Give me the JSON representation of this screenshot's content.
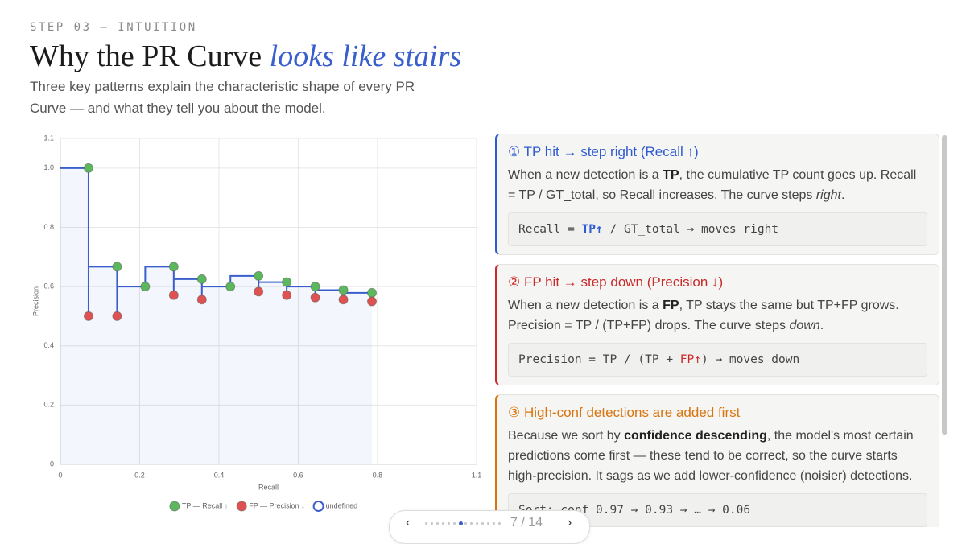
{
  "header": {
    "kicker": "STEP 03 — INTUITION",
    "title": "Why the PR Curve ",
    "title_accent": "looks like stairs",
    "subtitle": "Three key patterns explain the characteristic shape of every PR Curve — and what they tell you about the model."
  },
  "chart_data": {
    "type": "scatter",
    "xlabel": "Recall",
    "ylabel": "Precision",
    "xlim": [
      0,
      1.05
    ],
    "ylim": [
      0,
      1.1
    ],
    "xticks": [
      0,
      0.2,
      0.4,
      0.6,
      0.8,
      {
        "value": 1.05,
        "label": "1.1"
      }
    ],
    "yticks": [
      0,
      0.2,
      0.4,
      0.6,
      0.8,
      {
        "value": 1,
        "label": "1.0"
      },
      1.1
    ],
    "grid": true,
    "legend": "bottom",
    "series": [
      {
        "name": "TP — Recall ↑",
        "color": "#5cb85c",
        "mark": "point",
        "x": [
          0.071,
          0.143,
          0.214,
          0.286,
          0.357,
          0.429,
          0.5,
          0.571,
          0.643,
          0.714,
          0.786
        ],
        "values": [
          1.0,
          0.667,
          0.6,
          0.667,
          0.625,
          0.6,
          0.636,
          0.615,
          0.6,
          0.588,
          0.579
        ]
      },
      {
        "name": "FP — Precision ↓",
        "color": "#e05252",
        "mark": "point",
        "x": [
          0.071,
          0.143,
          0.286,
          0.357,
          0.5,
          0.571,
          0.643,
          0.714,
          0.786
        ],
        "values": [
          0.5,
          0.5,
          0.571,
          0.556,
          0.583,
          0.571,
          0.563,
          0.556,
          0.55
        ]
      },
      {
        "name": "undefined",
        "color": "#3a5fcd",
        "mark": "step",
        "x": [
          0,
          0.071,
          0.071,
          0.143,
          0.143,
          0.214,
          0.286,
          0.286,
          0.357,
          0.357,
          0.429,
          0.5,
          0.5,
          0.571,
          0.571,
          0.643,
          0.643,
          0.714,
          0.714,
          0.786,
          0.786
        ],
        "values": [
          1.0,
          1.0,
          0.5,
          0.667,
          0.5,
          0.6,
          0.667,
          0.571,
          0.625,
          0.556,
          0.6,
          0.636,
          0.583,
          0.615,
          0.571,
          0.6,
          0.563,
          0.588,
          0.556,
          0.579,
          0.55
        ]
      }
    ]
  },
  "cards": [
    {
      "title": "① TP hit → step right (Recall ↑)",
      "body": [
        "When a new detection is a ",
        "TP",
        ", the cumulative TP count goes up. Recall = TP / GT_total, so Recall increases. The curve steps ",
        "right",
        "."
      ],
      "code": [
        "Recall = ",
        "TP↑",
        " / GT_total → moves right"
      ]
    },
    {
      "title": "② FP hit → step down (Precision ↓)",
      "body": [
        "When a new detection is a ",
        "FP",
        ", TP stays the same but TP+FP grows. Precision = TP / (TP+FP) drops. The curve steps ",
        "down",
        "."
      ],
      "code": [
        "Precision = TP / (TP + ",
        "FP↑",
        ") → moves down"
      ]
    },
    {
      "title": "③ High-conf detections are added first",
      "body": [
        "Because we sort by ",
        "confidence descending",
        ", the model's most certain predictions come first — these tend to be correct, so the curve starts high-precision. It sags as we add lower-confidence (noisier) detections."
      ],
      "code": [
        "Sort: conf 0.97 → 0.93 → … → 0.06"
      ]
    }
  ],
  "nav": {
    "prev": "‹",
    "page": "7 / 14",
    "next": "›"
  }
}
